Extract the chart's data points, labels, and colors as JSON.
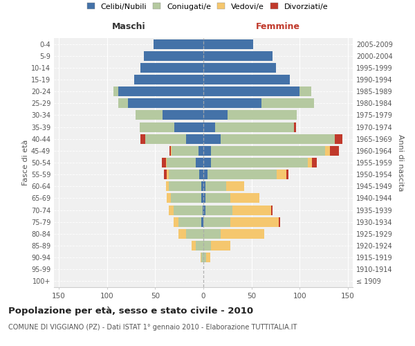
{
  "age_groups": [
    "100+",
    "95-99",
    "90-94",
    "85-89",
    "80-84",
    "75-79",
    "70-74",
    "65-69",
    "60-64",
    "55-59",
    "50-54",
    "45-49",
    "40-44",
    "35-39",
    "30-34",
    "25-29",
    "20-24",
    "15-19",
    "10-14",
    "5-9",
    "0-4"
  ],
  "birth_years": [
    "≤ 1909",
    "1910-1914",
    "1915-1919",
    "1920-1924",
    "1925-1929",
    "1930-1934",
    "1935-1939",
    "1940-1944",
    "1945-1949",
    "1950-1954",
    "1955-1959",
    "1960-1964",
    "1965-1969",
    "1970-1974",
    "1975-1979",
    "1980-1984",
    "1985-1989",
    "1990-1994",
    "1995-1999",
    "2000-2004",
    "2005-2009"
  ],
  "males": {
    "celibe": [
      0,
      0,
      0,
      0,
      0,
      2,
      1,
      2,
      2,
      4,
      8,
      5,
      18,
      30,
      42,
      78,
      88,
      72,
      65,
      62,
      52
    ],
    "coniugato": [
      0,
      0,
      2,
      8,
      18,
      24,
      30,
      32,
      34,
      32,
      30,
      28,
      42,
      36,
      28,
      10,
      5,
      0,
      0,
      0,
      0
    ],
    "vedovo": [
      0,
      0,
      1,
      4,
      8,
      5,
      5,
      4,
      3,
      2,
      1,
      1,
      0,
      0,
      0,
      0,
      0,
      0,
      0,
      0,
      0
    ],
    "divorziato": [
      0,
      0,
      0,
      0,
      0,
      0,
      0,
      0,
      0,
      3,
      4,
      1,
      5,
      0,
      0,
      0,
      0,
      0,
      0,
      0,
      0
    ]
  },
  "females": {
    "nubile": [
      0,
      0,
      0,
      0,
      0,
      0,
      2,
      2,
      2,
      4,
      8,
      8,
      18,
      12,
      25,
      60,
      100,
      90,
      75,
      72,
      52
    ],
    "coniugata": [
      0,
      0,
      3,
      8,
      18,
      28,
      28,
      26,
      22,
      72,
      100,
      118,
      118,
      82,
      72,
      55,
      12,
      0,
      0,
      0,
      0
    ],
    "vedova": [
      0,
      0,
      4,
      20,
      45,
      50,
      40,
      30,
      18,
      10,
      5,
      5,
      0,
      0,
      0,
      0,
      0,
      0,
      0,
      0,
      0
    ],
    "divorziata": [
      0,
      0,
      0,
      0,
      0,
      2,
      2,
      0,
      0,
      2,
      5,
      10,
      8,
      2,
      0,
      0,
      0,
      0,
      0,
      0,
      0
    ]
  },
  "colors": {
    "celibe": "#4472a8",
    "coniugato": "#b5c9a0",
    "vedovo": "#f5c76e",
    "divorziato": "#c0392b"
  },
  "title": "Popolazione per età, sesso e stato civile - 2010",
  "subtitle": "COMUNE DI VIGGIANO (PZ) - Dati ISTAT 1° gennaio 2010 - Elaborazione TUTTITALIA.IT",
  "legend_labels": [
    "Celibi/Nubili",
    "Coniugati/e",
    "Vedovi/e",
    "Divorziati/e"
  ],
  "xlim": 155,
  "xlabel_maschi": "Maschi",
  "xlabel_femmine": "Femmine",
  "ylabel_left": "Fasce di età",
  "ylabel_right": "Anni di nascita",
  "bg_color": "#ffffff",
  "plot_bg": "#f0f0f0"
}
